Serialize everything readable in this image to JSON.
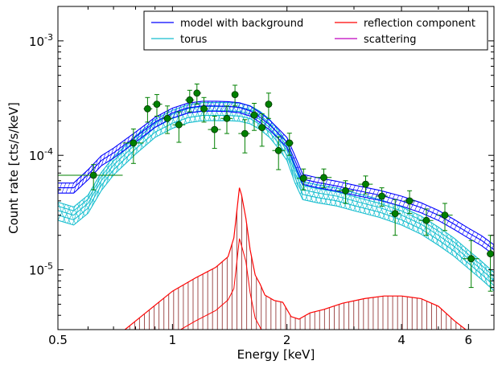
{
  "chart_data": {
    "type": "line",
    "xlabel": "Energy [keV]",
    "ylabel": "Count rate [cts/s/keV]",
    "xscale": "log",
    "yscale": "log",
    "xlim": [
      0.5,
      7.0
    ],
    "ylim": [
      3e-06,
      0.002
    ],
    "xticks": [
      {
        "value": 0.5,
        "label": "0.5"
      },
      {
        "value": 1,
        "label": "1"
      },
      {
        "value": 2,
        "label": "2"
      },
      {
        "value": 4,
        "label": "4"
      },
      {
        "value": 6,
        "label": "6"
      }
    ],
    "yticks": [
      {
        "value": 1e-05,
        "base": "10",
        "exp": "-5"
      },
      {
        "value": 0.0001,
        "base": "10",
        "exp": "-4"
      },
      {
        "value": 0.001,
        "base": "10",
        "exp": "-3"
      }
    ],
    "legend_position": "top-right",
    "colors": {
      "model": "#0000ff",
      "torus": "#17becf",
      "reflection": "#ff0000",
      "scattering": "#bf00bf",
      "data": "#008000",
      "reflection_fill": "#a05050"
    },
    "series": [
      {
        "name": "model with background",
        "x": [
          0.5,
          0.55,
          0.6,
          0.65,
          0.7,
          0.8,
          0.9,
          1.0,
          1.1,
          1.2,
          1.3,
          1.4,
          1.5,
          1.6,
          1.7,
          1.8,
          1.9,
          2.0,
          2.1,
          2.2,
          2.4,
          2.7,
          3.0,
          3.5,
          4.0,
          4.5,
          5.0,
          5.5,
          6.0,
          6.5,
          7.0
        ],
        "y": [
          5.2e-05,
          5.2e-05,
          6.8e-05,
          9e-05,
          0.000105,
          0.000145,
          0.000195,
          0.000235,
          0.00026,
          0.00027,
          0.00027,
          0.000268,
          0.000262,
          0.000245,
          0.000215,
          0.000185,
          0.000155,
          0.00013,
          9e-05,
          6.2e-05,
          5.8e-05,
          5.4e-05,
          5e-05,
          4.5e-05,
          4e-05,
          3.5e-05,
          3e-05,
          2.5e-05,
          2.1e-05,
          1.8e-05,
          1.5e-05
        ]
      },
      {
        "name": "torus",
        "x": [
          0.5,
          0.55,
          0.6,
          0.65,
          0.7,
          0.8,
          0.9,
          1.0,
          1.1,
          1.2,
          1.3,
          1.4,
          1.5,
          1.6,
          1.7,
          1.8,
          1.9,
          2.0,
          2.1,
          2.2,
          2.4,
          2.7,
          3.0,
          3.5,
          4.0,
          4.5,
          5.0,
          5.5,
          6.0,
          6.5,
          7.0
        ],
        "y": [
          3.3e-05,
          3e-05,
          3.8e-05,
          6e-05,
          8.2e-05,
          0.000125,
          0.000175,
          0.00021,
          0.000235,
          0.000245,
          0.000245,
          0.000245,
          0.000242,
          0.00023,
          0.000205,
          0.000175,
          0.00014,
          0.00011,
          7e-05,
          5e-05,
          4.7e-05,
          4.4e-05,
          4e-05,
          3.5e-05,
          3e-05,
          2.5e-05,
          2e-05,
          1.6e-05,
          1.25e-05,
          1e-05,
          8e-06
        ]
      },
      {
        "name": "reflection component",
        "x": [
          0.75,
          0.85,
          1.0,
          1.15,
          1.3,
          1.4,
          1.45,
          1.48,
          1.5,
          1.52,
          1.56,
          1.6,
          1.65,
          1.7,
          1.75,
          1.85,
          1.95,
          2.05,
          2.15,
          2.3,
          2.5,
          2.8,
          3.2,
          3.6,
          4.0,
          4.5,
          5.0,
          5.5,
          5.9
        ],
        "y": [
          3e-06,
          4.2e-06,
          6.5e-06,
          8.5e-06,
          1.05e-05,
          1.3e-05,
          1.9e-05,
          3.5e-05,
          5.2e-05,
          4.5e-05,
          2.8e-05,
          1.5e-05,
          9e-06,
          7.5e-06,
          6e-06,
          5.4e-06,
          5.2e-06,
          3.9e-06,
          3.7e-06,
          4.2e-06,
          4.5e-06,
          5.1e-06,
          5.6e-06,
          5.9e-06,
          5.9e-06,
          5.6e-06,
          4.8e-06,
          3.6e-06,
          3e-06
        ]
      },
      {
        "name": "scattering",
        "x": [],
        "y": []
      }
    ],
    "data_points": [
      {
        "x": 0.62,
        "y": 6.7e-05,
        "xlo": 0.5,
        "xhi": 0.74,
        "ylo": 5e-05,
        "yhi": 8.3e-05
      },
      {
        "x": 0.79,
        "y": 0.000128,
        "xlo": 0.74,
        "xhi": 0.84,
        "ylo": 8.5e-05,
        "yhi": 0.00017
      },
      {
        "x": 0.86,
        "y": 0.000255,
        "xlo": 0.84,
        "xhi": 0.885,
        "ylo": 0.000195,
        "yhi": 0.00032
      },
      {
        "x": 0.91,
        "y": 0.00028,
        "xlo": 0.885,
        "xhi": 0.94,
        "ylo": 0.00022,
        "yhi": 0.00034
      },
      {
        "x": 0.97,
        "y": 0.00021,
        "xlo": 0.94,
        "xhi": 1.0,
        "ylo": 0.000155,
        "yhi": 0.00027
      },
      {
        "x": 1.04,
        "y": 0.000185,
        "xlo": 1.0,
        "xhi": 1.08,
        "ylo": 0.00013,
        "yhi": 0.00024
      },
      {
        "x": 1.11,
        "y": 0.000305,
        "xlo": 1.08,
        "xhi": 1.14,
        "ylo": 0.00024,
        "yhi": 0.00037
      },
      {
        "x": 1.16,
        "y": 0.00035,
        "xlo": 1.14,
        "xhi": 1.19,
        "ylo": 0.00028,
        "yhi": 0.00042
      },
      {
        "x": 1.21,
        "y": 0.000255,
        "xlo": 1.19,
        "xhi": 1.24,
        "ylo": 0.000195,
        "yhi": 0.00032
      },
      {
        "x": 1.29,
        "y": 0.000168,
        "xlo": 1.24,
        "xhi": 1.34,
        "ylo": 0.000115,
        "yhi": 0.00022
      },
      {
        "x": 1.39,
        "y": 0.00021,
        "xlo": 1.34,
        "xhi": 1.44,
        "ylo": 0.000155,
        "yhi": 0.00027
      },
      {
        "x": 1.46,
        "y": 0.00034,
        "xlo": 1.44,
        "xhi": 1.49,
        "ylo": 0.00027,
        "yhi": 0.00041
      },
      {
        "x": 1.55,
        "y": 0.000155,
        "xlo": 1.49,
        "xhi": 1.6,
        "ylo": 0.000105,
        "yhi": 0.000205
      },
      {
        "x": 1.64,
        "y": 0.000225,
        "xlo": 1.6,
        "xhi": 1.68,
        "ylo": 0.000165,
        "yhi": 0.000285
      },
      {
        "x": 1.72,
        "y": 0.000175,
        "xlo": 1.68,
        "xhi": 1.76,
        "ylo": 0.00012,
        "yhi": 0.00023
      },
      {
        "x": 1.79,
        "y": 0.00028,
        "xlo": 1.76,
        "xhi": 1.83,
        "ylo": 0.00021,
        "yhi": 0.00035
      },
      {
        "x": 1.9,
        "y": 0.00011,
        "xlo": 1.83,
        "xhi": 1.98,
        "ylo": 7.5e-05,
        "yhi": 0.000145
      },
      {
        "x": 2.03,
        "y": 0.000128,
        "xlo": 1.98,
        "xhi": 2.08,
        "ylo": 0.0001,
        "yhi": 0.000156
      },
      {
        "x": 2.21,
        "y": 6.3e-05,
        "xlo": 2.12,
        "xhi": 2.32,
        "ylo": 5e-05,
        "yhi": 7.6e-05
      },
      {
        "x": 2.5,
        "y": 6.4e-05,
        "xlo": 2.38,
        "xhi": 2.62,
        "ylo": 5.2e-05,
        "yhi": 7.6e-05
      },
      {
        "x": 2.85,
        "y": 4.9e-05,
        "xlo": 2.7,
        "xhi": 3.0,
        "ylo": 3.8e-05,
        "yhi": 6e-05
      },
      {
        "x": 3.22,
        "y": 5.6e-05,
        "xlo": 3.08,
        "xhi": 3.36,
        "ylo": 4.6e-05,
        "yhi": 6.6e-05
      },
      {
        "x": 3.55,
        "y": 4.4e-05,
        "xlo": 3.42,
        "xhi": 3.68,
        "ylo": 3.6e-05,
        "yhi": 5.2e-05
      },
      {
        "x": 3.85,
        "y": 3.1e-05,
        "xlo": 3.72,
        "xhi": 3.98,
        "ylo": 2e-05,
        "yhi": 4.1e-05
      },
      {
        "x": 4.2,
        "y": 4e-05,
        "xlo": 4.05,
        "xhi": 4.35,
        "ylo": 3.1e-05,
        "yhi": 4.9e-05
      },
      {
        "x": 4.65,
        "y": 2.7e-05,
        "xlo": 4.45,
        "xhi": 4.85,
        "ylo": 2e-05,
        "yhi": 3.4e-05
      },
      {
        "x": 5.2,
        "y": 3e-05,
        "xlo": 4.95,
        "xhi": 5.45,
        "ylo": 2.2e-05,
        "yhi": 3.8e-05
      },
      {
        "x": 6.1,
        "y": 1.25e-05,
        "xlo": 5.8,
        "xhi": 6.4,
        "ylo": 7e-06,
        "yhi": 1.8e-05
      },
      {
        "x": 6.85,
        "y": 1.38e-05,
        "xlo": 6.7,
        "xhi": 7.0,
        "ylo": 6.5e-06,
        "yhi": 2e-05
      }
    ]
  }
}
